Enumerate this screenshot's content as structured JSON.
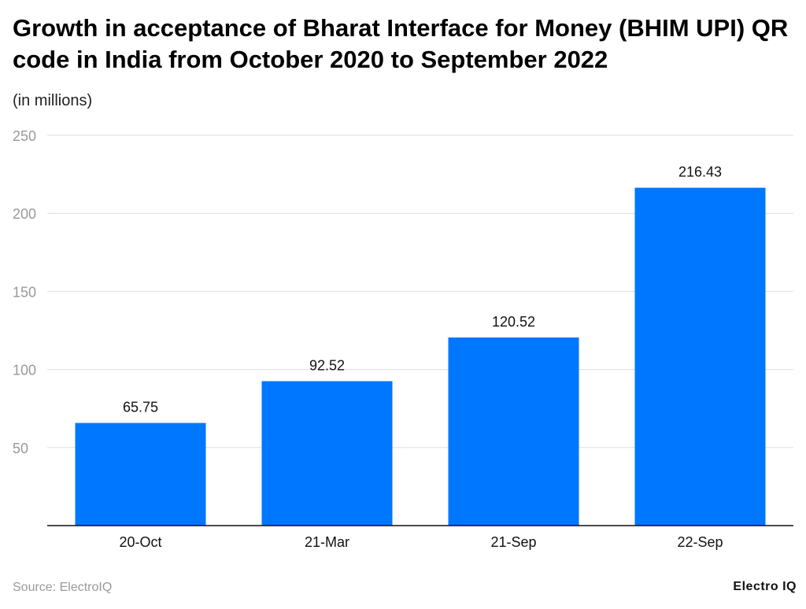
{
  "chart_data": {
    "type": "bar",
    "title": "Growth in acceptance of Bharat Interface for Money (BHIM UPI) QR code in India from October 2020 to September 2022",
    "subtitle": "(in millions)",
    "categories": [
      "20-Oct",
      "21-Mar",
      "21-Sep",
      "22-Sep"
    ],
    "values": [
      65.75,
      92.52,
      120.52,
      216.43
    ],
    "data_labels": [
      "65.75",
      "92.52",
      "120.52",
      "216.43"
    ],
    "yticks": [
      50,
      100,
      150,
      200,
      250
    ],
    "ylim": [
      0,
      250
    ],
    "xlabel": "",
    "ylabel": "",
    "grid": true,
    "bar_color": "#0077ff"
  },
  "footer": {
    "source": "Source: ElectroIQ",
    "logo": "Electro IQ"
  }
}
